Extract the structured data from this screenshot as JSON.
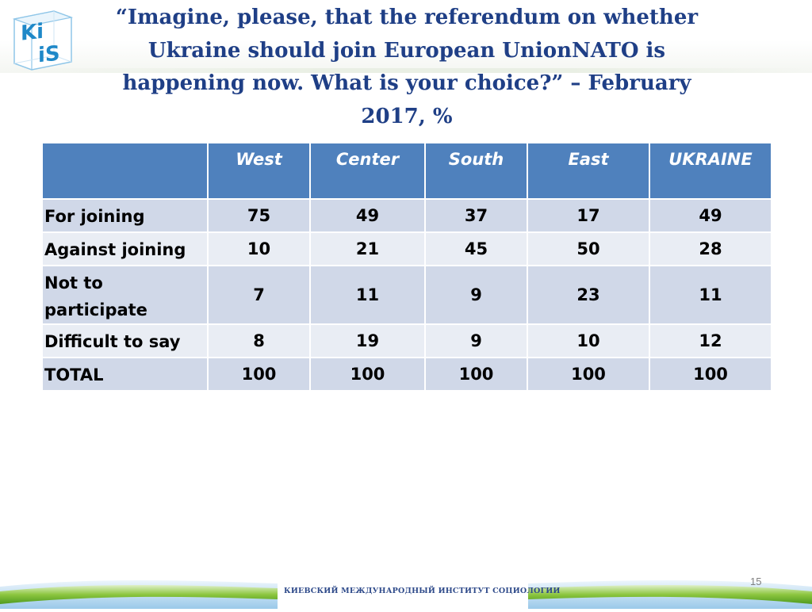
{
  "logo": {
    "text_top": "Ki",
    "text_bottom": "iS"
  },
  "title": "“Imagine, please, that the referendum on whether Ukraine should join  European UnionNATO is happening now. What is your choice?” – February 2017, %",
  "table": {
    "columns": [
      "",
      "West",
      "Center",
      "South",
      "East",
      "UKRAINE"
    ],
    "rows": [
      {
        "label": "For joining",
        "values": [
          "75",
          "49",
          "37",
          "17",
          "49"
        ]
      },
      {
        "label": "Against joining",
        "values": [
          "10",
          "21",
          "45",
          "50",
          "28"
        ]
      },
      {
        "label": "Not to participate",
        "values": [
          "7",
          "11",
          "9",
          "23",
          "11"
        ]
      },
      {
        "label": "Difficult to say",
        "values": [
          "8",
          "19",
          "9",
          "10",
          "12"
        ]
      },
      {
        "label": "TOTAL",
        "values": [
          "100",
          "100",
          "100",
          "100",
          "100"
        ]
      }
    ]
  },
  "footer": {
    "institute": "КИЕВСКИЙ МЕЖДУНАРОДНЫЙ ИНСТИТУТ СОЦИОЛОГИИ",
    "page_number": "15"
  },
  "colors": {
    "header_bg": "#4f81bd",
    "row_odd": "#d0d8e8",
    "row_even": "#e9edf4",
    "title_color": "#1f3f86",
    "logo_blue": "#1e88c8"
  }
}
